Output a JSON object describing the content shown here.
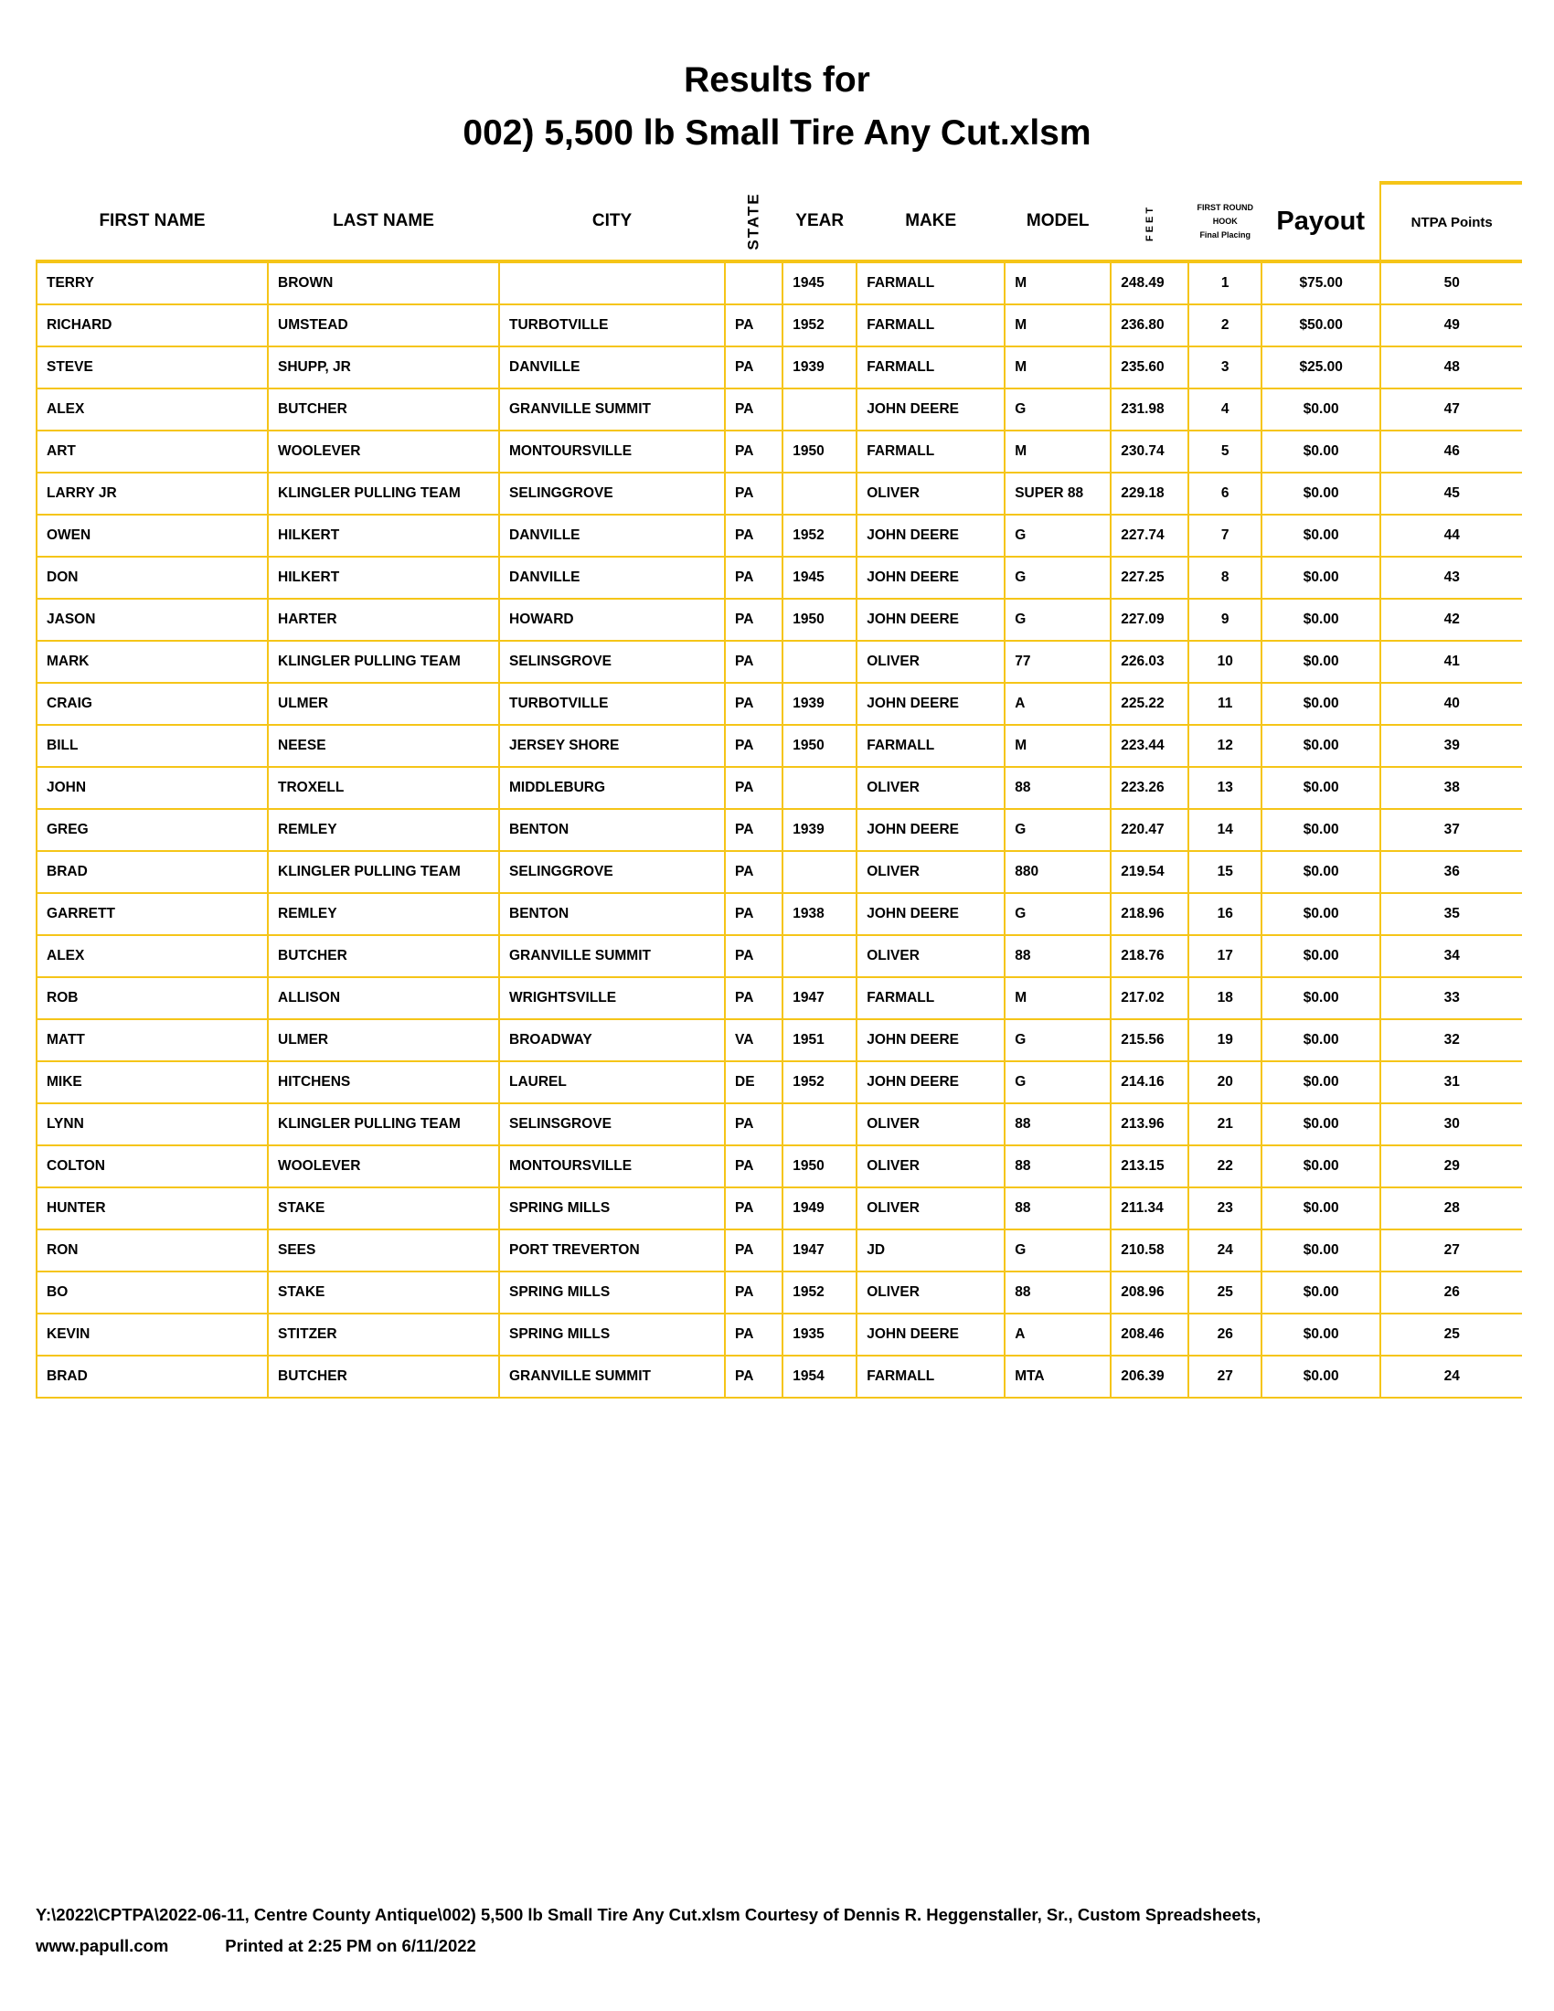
{
  "title": {
    "line1": "Results for",
    "line2": "002) 5,500 lb Small Tire Any Cut.xlsm"
  },
  "columns": {
    "first": "FIRST NAME",
    "last": "LAST NAME",
    "city": "CITY",
    "state": "STATE",
    "year": "YEAR",
    "make": "MAKE",
    "model": "MODEL",
    "feet": "FEET",
    "hook1": "FIRST ROUND",
    "hook2": "HOOK",
    "hook3": "Final Placing",
    "payout": "Payout",
    "points": "NTPA Points"
  },
  "accent_color": "#f5c518",
  "rows": [
    [
      "TERRY",
      "BROWN",
      "",
      "",
      "1945",
      "FARMALL",
      "M",
      "248.49",
      "1",
      "$75.00",
      "50"
    ],
    [
      "RICHARD",
      "UMSTEAD",
      "TURBOTVILLE",
      "PA",
      "1952",
      "FARMALL",
      "M",
      "236.80",
      "2",
      "$50.00",
      "49"
    ],
    [
      "STEVE",
      "SHUPP, JR",
      "DANVILLE",
      "PA",
      "1939",
      "FARMALL",
      "M",
      "235.60",
      "3",
      "$25.00",
      "48"
    ],
    [
      "ALEX",
      "BUTCHER",
      "GRANVILLE SUMMIT",
      "PA",
      "",
      "JOHN DEERE",
      "G",
      "231.98",
      "4",
      "$0.00",
      "47"
    ],
    [
      "ART",
      "WOOLEVER",
      "MONTOURSVILLE",
      "PA",
      "1950",
      "FARMALL",
      "M",
      "230.74",
      "5",
      "$0.00",
      "46"
    ],
    [
      "LARRY JR",
      "KLINGLER PULLING TEAM",
      "SELINGGROVE",
      "PA",
      "",
      "OLIVER",
      "SUPER 88",
      "229.18",
      "6",
      "$0.00",
      "45"
    ],
    [
      "OWEN",
      "HILKERT",
      "DANVILLE",
      "PA",
      "1952",
      "JOHN DEERE",
      "G",
      "227.74",
      "7",
      "$0.00",
      "44"
    ],
    [
      "DON",
      "HILKERT",
      "DANVILLE",
      "PA",
      "1945",
      "JOHN DEERE",
      "G",
      "227.25",
      "8",
      "$0.00",
      "43"
    ],
    [
      "JASON",
      "HARTER",
      "HOWARD",
      "PA",
      "1950",
      "JOHN DEERE",
      "G",
      "227.09",
      "9",
      "$0.00",
      "42"
    ],
    [
      "MARK",
      "KLINGLER PULLING TEAM",
      "SELINSGROVE",
      "PA",
      "",
      "OLIVER",
      "77",
      "226.03",
      "10",
      "$0.00",
      "41"
    ],
    [
      "CRAIG",
      "ULMER",
      "TURBOTVILLE",
      "PA",
      "1939",
      "JOHN DEERE",
      "A",
      "225.22",
      "11",
      "$0.00",
      "40"
    ],
    [
      "BILL",
      "NEESE",
      "JERSEY SHORE",
      "PA",
      "1950",
      "FARMALL",
      "M",
      "223.44",
      "12",
      "$0.00",
      "39"
    ],
    [
      "JOHN",
      "TROXELL",
      "MIDDLEBURG",
      "PA",
      "",
      "OLIVER",
      "88",
      "223.26",
      "13",
      "$0.00",
      "38"
    ],
    [
      "GREG",
      "REMLEY",
      "BENTON",
      "PA",
      "1939",
      "JOHN DEERE",
      "G",
      "220.47",
      "14",
      "$0.00",
      "37"
    ],
    [
      "BRAD",
      "KLINGLER PULLING TEAM",
      "SELINGGROVE",
      "PA",
      "",
      "OLIVER",
      "880",
      "219.54",
      "15",
      "$0.00",
      "36"
    ],
    [
      "GARRETT",
      "REMLEY",
      "BENTON",
      "PA",
      "1938",
      "JOHN DEERE",
      "G",
      "218.96",
      "16",
      "$0.00",
      "35"
    ],
    [
      "ALEX",
      "BUTCHER",
      "GRANVILLE SUMMIT",
      "PA",
      "",
      "OLIVER",
      "88",
      "218.76",
      "17",
      "$0.00",
      "34"
    ],
    [
      "ROB",
      "ALLISON",
      "WRIGHTSVILLE",
      "PA",
      "1947",
      "FARMALL",
      "M",
      "217.02",
      "18",
      "$0.00",
      "33"
    ],
    [
      "MATT",
      "ULMER",
      "BROADWAY",
      "VA",
      "1951",
      "JOHN DEERE",
      "G",
      "215.56",
      "19",
      "$0.00",
      "32"
    ],
    [
      "MIKE",
      "HITCHENS",
      "LAUREL",
      "DE",
      "1952",
      "JOHN DEERE",
      "G",
      "214.16",
      "20",
      "$0.00",
      "31"
    ],
    [
      "LYNN",
      "KLINGLER PULLING TEAM",
      "SELINSGROVE",
      "PA",
      "",
      "OLIVER",
      "88",
      "213.96",
      "21",
      "$0.00",
      "30"
    ],
    [
      "COLTON",
      "WOOLEVER",
      "MONTOURSVILLE",
      "PA",
      "1950",
      "OLIVER",
      "88",
      "213.15",
      "22",
      "$0.00",
      "29"
    ],
    [
      "HUNTER",
      "STAKE",
      "SPRING MILLS",
      "PA",
      "1949",
      "OLIVER",
      "88",
      "211.34",
      "23",
      "$0.00",
      "28"
    ],
    [
      "RON",
      "SEES",
      "PORT TREVERTON",
      "PA",
      "1947",
      "JD",
      "G",
      "210.58",
      "24",
      "$0.00",
      "27"
    ],
    [
      "BO",
      "STAKE",
      "SPRING MILLS",
      "PA",
      "1952",
      "OLIVER",
      "88",
      "208.96",
      "25",
      "$0.00",
      "26"
    ],
    [
      "KEVIN",
      "STITZER",
      "SPRING MILLS",
      "PA",
      "1935",
      "JOHN DEERE",
      "A",
      "208.46",
      "26",
      "$0.00",
      "25"
    ],
    [
      "BRAD",
      "BUTCHER",
      "GRANVILLE SUMMIT",
      "PA",
      "1954",
      "FARMALL",
      "MTA",
      "206.39",
      "27",
      "$0.00",
      "24"
    ]
  ],
  "footer": {
    "line1": "Y:\\2022\\CPTPA\\2022-06-11, Centre County Antique\\002) 5,500 lb Small Tire Any Cut.xlsm  Courtesy of Dennis R. Heggenstaller, Sr., Custom Spreadsheets,",
    "site": "www.papull.com",
    "printed": "Printed at 2:25 PM on 6/11/2022"
  }
}
